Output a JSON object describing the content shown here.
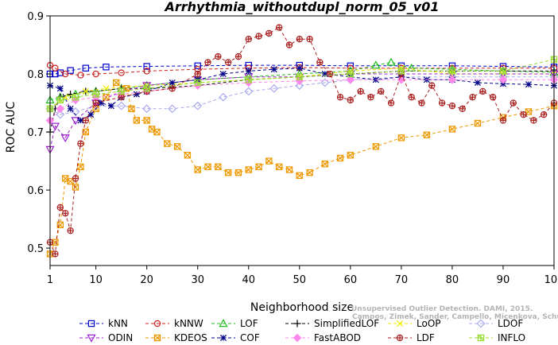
{
  "chart_data": {
    "type": "line",
    "title": "Arrhythmia_withoutdupl_norm_05_v01",
    "xlabel": "Neighborhood size",
    "ylabel": "ROC AUC",
    "xlim": [
      1,
      100
    ],
    "ylim": [
      0.47,
      0.9
    ],
    "x_ticks": [
      1,
      10,
      20,
      30,
      40,
      50,
      60,
      70,
      80,
      90,
      100
    ],
    "y_ticks": [
      0.5,
      0.6,
      0.7,
      0.8,
      0.9
    ],
    "legend_placement": "bottom",
    "credit_lines": [
      "Unsupervised Outlier Detection. DAMI, 2015.",
      "Campos, Zimek, Sander, Campello, Micenkova, Schubert, Assent, Houle"
    ],
    "series": [
      {
        "name": "kNN",
        "color": "#0000cc",
        "marker": "square",
        "points": [
          [
            1,
            0.8
          ],
          [
            2,
            0.8
          ],
          [
            3,
            0.802
          ],
          [
            5,
            0.806
          ],
          [
            8,
            0.81
          ],
          [
            12,
            0.812
          ],
          [
            20,
            0.813
          ],
          [
            30,
            0.814
          ],
          [
            40,
            0.815
          ],
          [
            50,
            0.815
          ],
          [
            60,
            0.814
          ],
          [
            70,
            0.814
          ],
          [
            80,
            0.814
          ],
          [
            90,
            0.813
          ],
          [
            100,
            0.812
          ]
        ]
      },
      {
        "name": "kNNW",
        "color": "#cc2222",
        "marker": "circle",
        "points": [
          [
            1,
            0.815
          ],
          [
            2,
            0.81
          ],
          [
            4,
            0.8
          ],
          [
            7,
            0.798
          ],
          [
            10,
            0.8
          ],
          [
            15,
            0.802
          ],
          [
            20,
            0.805
          ],
          [
            30,
            0.808
          ],
          [
            40,
            0.81
          ],
          [
            50,
            0.811
          ],
          [
            60,
            0.81
          ],
          [
            70,
            0.81
          ],
          [
            80,
            0.81
          ],
          [
            90,
            0.81
          ],
          [
            100,
            0.81
          ]
        ]
      },
      {
        "name": "LOF",
        "color": "#22bb22",
        "marker": "triangle",
        "points": [
          [
            1,
            0.755
          ],
          [
            3,
            0.76
          ],
          [
            6,
            0.765
          ],
          [
            10,
            0.77
          ],
          [
            15,
            0.775
          ],
          [
            20,
            0.78
          ],
          [
            30,
            0.79
          ],
          [
            40,
            0.795
          ],
          [
            50,
            0.8
          ],
          [
            60,
            0.805
          ],
          [
            65,
            0.815
          ],
          [
            68,
            0.82
          ],
          [
            72,
            0.81
          ],
          [
            80,
            0.808
          ],
          [
            90,
            0.805
          ],
          [
            100,
            0.803
          ]
        ]
      },
      {
        "name": "SimplifiedLOF",
        "color": "#000000",
        "marker": "plus",
        "points": [
          [
            1,
            0.7
          ],
          [
            2,
            0.74
          ],
          [
            3,
            0.76
          ],
          [
            5,
            0.765
          ],
          [
            8,
            0.77
          ],
          [
            10,
            0.77
          ],
          [
            15,
            0.775
          ],
          [
            20,
            0.775
          ],
          [
            25,
            0.777
          ],
          [
            30,
            0.78
          ],
          [
            40,
            0.79
          ],
          [
            50,
            0.795
          ],
          [
            60,
            0.8
          ],
          [
            70,
            0.805
          ],
          [
            80,
            0.805
          ],
          [
            90,
            0.805
          ],
          [
            100,
            0.805
          ]
        ]
      },
      {
        "name": "LoOP",
        "color": "#eeee00",
        "marker": "x",
        "points": [
          [
            1,
            0.74
          ],
          [
            4,
            0.76
          ],
          [
            8,
            0.77
          ],
          [
            12,
            0.775
          ],
          [
            20,
            0.78
          ],
          [
            30,
            0.785
          ],
          [
            40,
            0.79
          ],
          [
            50,
            0.795
          ],
          [
            60,
            0.805
          ],
          [
            70,
            0.81
          ],
          [
            80,
            0.8
          ],
          [
            90,
            0.8
          ],
          [
            100,
            0.8
          ]
        ]
      },
      {
        "name": "LDOF",
        "color": "#aaaaee",
        "marker": "diamond",
        "points": [
          [
            1,
            0.74
          ],
          [
            3,
            0.73
          ],
          [
            6,
            0.735
          ],
          [
            10,
            0.745
          ],
          [
            15,
            0.745
          ],
          [
            20,
            0.74
          ],
          [
            25,
            0.74
          ],
          [
            30,
            0.745
          ],
          [
            35,
            0.76
          ],
          [
            40,
            0.77
          ],
          [
            45,
            0.775
          ],
          [
            50,
            0.78
          ],
          [
            55,
            0.785
          ],
          [
            60,
            0.79
          ],
          [
            70,
            0.795
          ],
          [
            80,
            0.795
          ],
          [
            90,
            0.795
          ],
          [
            100,
            0.795
          ]
        ]
      },
      {
        "name": "ODIN",
        "color": "#9922cc",
        "marker": "down-triangle",
        "points": [
          [
            1,
            0.67
          ],
          [
            2,
            0.71
          ],
          [
            4,
            0.69
          ],
          [
            6,
            0.72
          ],
          [
            10,
            0.75
          ],
          [
            15,
            0.77
          ],
          [
            20,
            0.78
          ],
          [
            30,
            0.79
          ],
          [
            40,
            0.795
          ],
          [
            50,
            0.795
          ],
          [
            60,
            0.8
          ],
          [
            70,
            0.8
          ],
          [
            80,
            0.8
          ],
          [
            90,
            0.8
          ],
          [
            100,
            0.8
          ]
        ]
      },
      {
        "name": "KDEOS",
        "color": "#ee9900",
        "marker": "square-x",
        "points": [
          [
            1,
            0.49
          ],
          [
            2,
            0.51
          ],
          [
            3,
            0.54
          ],
          [
            4,
            0.62
          ],
          [
            5,
            0.615
          ],
          [
            6,
            0.605
          ],
          [
            7,
            0.64
          ],
          [
            8,
            0.7
          ],
          [
            10,
            0.74
          ],
          [
            12,
            0.76
          ],
          [
            14,
            0.785
          ],
          [
            16,
            0.775
          ],
          [
            17,
            0.74
          ],
          [
            18,
            0.72
          ],
          [
            20,
            0.72
          ],
          [
            21,
            0.705
          ],
          [
            22,
            0.7
          ],
          [
            24,
            0.68
          ],
          [
            26,
            0.675
          ],
          [
            28,
            0.66
          ],
          [
            30,
            0.635
          ],
          [
            32,
            0.64
          ],
          [
            34,
            0.64
          ],
          [
            36,
            0.63
          ],
          [
            38,
            0.63
          ],
          [
            40,
            0.635
          ],
          [
            42,
            0.64
          ],
          [
            44,
            0.65
          ],
          [
            46,
            0.64
          ],
          [
            48,
            0.635
          ],
          [
            50,
            0.625
          ],
          [
            52,
            0.63
          ],
          [
            55,
            0.645
          ],
          [
            58,
            0.655
          ],
          [
            60,
            0.66
          ],
          [
            65,
            0.675
          ],
          [
            70,
            0.69
          ],
          [
            75,
            0.695
          ],
          [
            80,
            0.705
          ],
          [
            85,
            0.715
          ],
          [
            90,
            0.725
          ],
          [
            95,
            0.735
          ],
          [
            100,
            0.745
          ]
        ]
      },
      {
        "name": "COF",
        "color": "#000088",
        "marker": "asterisk",
        "points": [
          [
            1,
            0.78
          ],
          [
            3,
            0.775
          ],
          [
            5,
            0.74
          ],
          [
            7,
            0.72
          ],
          [
            9,
            0.73
          ],
          [
            11,
            0.75
          ],
          [
            13,
            0.745
          ],
          [
            15,
            0.76
          ],
          [
            18,
            0.765
          ],
          [
            20,
            0.77
          ],
          [
            25,
            0.785
          ],
          [
            30,
            0.79
          ],
          [
            35,
            0.8
          ],
          [
            40,
            0.805
          ],
          [
            45,
            0.808
          ],
          [
            50,
            0.81
          ],
          [
            55,
            0.8
          ],
          [
            60,
            0.795
          ],
          [
            65,
            0.79
          ],
          [
            70,
            0.795
          ],
          [
            75,
            0.79
          ],
          [
            80,
            0.79
          ],
          [
            85,
            0.785
          ],
          [
            90,
            0.783
          ],
          [
            95,
            0.782
          ],
          [
            100,
            0.78
          ]
        ]
      },
      {
        "name": "FastABOD",
        "color": "#ff88ee",
        "marker": "diamond-filled",
        "points": [
          [
            1,
            0.72
          ],
          [
            3,
            0.74
          ],
          [
            6,
            0.755
          ],
          [
            10,
            0.76
          ],
          [
            15,
            0.765
          ],
          [
            20,
            0.77
          ],
          [
            30,
            0.78
          ],
          [
            40,
            0.785
          ],
          [
            50,
            0.788
          ],
          [
            60,
            0.79
          ],
          [
            70,
            0.79
          ],
          [
            80,
            0.79
          ],
          [
            90,
            0.79
          ],
          [
            100,
            0.79
          ]
        ]
      },
      {
        "name": "LDF",
        "color": "#aa2222",
        "marker": "circle-plus",
        "points": [
          [
            1,
            0.51
          ],
          [
            2,
            0.49
          ],
          [
            3,
            0.57
          ],
          [
            4,
            0.56
          ],
          [
            5,
            0.53
          ],
          [
            6,
            0.62
          ],
          [
            7,
            0.68
          ],
          [
            8,
            0.72
          ],
          [
            10,
            0.75
          ],
          [
            15,
            0.76
          ],
          [
            20,
            0.77
          ],
          [
            25,
            0.775
          ],
          [
            30,
            0.8
          ],
          [
            32,
            0.82
          ],
          [
            34,
            0.83
          ],
          [
            36,
            0.82
          ],
          [
            38,
            0.83
          ],
          [
            40,
            0.86
          ],
          [
            42,
            0.865
          ],
          [
            44,
            0.87
          ],
          [
            46,
            0.88
          ],
          [
            48,
            0.85
          ],
          [
            50,
            0.86
          ],
          [
            52,
            0.86
          ],
          [
            54,
            0.82
          ],
          [
            56,
            0.8
          ],
          [
            58,
            0.76
          ],
          [
            60,
            0.755
          ],
          [
            62,
            0.77
          ],
          [
            64,
            0.76
          ],
          [
            66,
            0.77
          ],
          [
            68,
            0.75
          ],
          [
            70,
            0.8
          ],
          [
            72,
            0.76
          ],
          [
            74,
            0.75
          ],
          [
            76,
            0.78
          ],
          [
            78,
            0.75
          ],
          [
            80,
            0.745
          ],
          [
            82,
            0.74
          ],
          [
            84,
            0.76
          ],
          [
            86,
            0.77
          ],
          [
            88,
            0.76
          ],
          [
            90,
            0.72
          ],
          [
            92,
            0.75
          ],
          [
            94,
            0.73
          ],
          [
            96,
            0.72
          ],
          [
            98,
            0.73
          ],
          [
            100,
            0.75
          ]
        ]
      },
      {
        "name": "INFLO",
        "color": "#99dd33",
        "marker": "square-star",
        "points": [
          [
            1,
            0.74
          ],
          [
            3,
            0.755
          ],
          [
            6,
            0.76
          ],
          [
            10,
            0.765
          ],
          [
            15,
            0.77
          ],
          [
            20,
            0.775
          ],
          [
            30,
            0.785
          ],
          [
            40,
            0.79
          ],
          [
            50,
            0.795
          ],
          [
            60,
            0.8
          ],
          [
            70,
            0.805
          ],
          [
            80,
            0.805
          ],
          [
            90,
            0.805
          ],
          [
            100,
            0.825
          ]
        ]
      }
    ]
  }
}
